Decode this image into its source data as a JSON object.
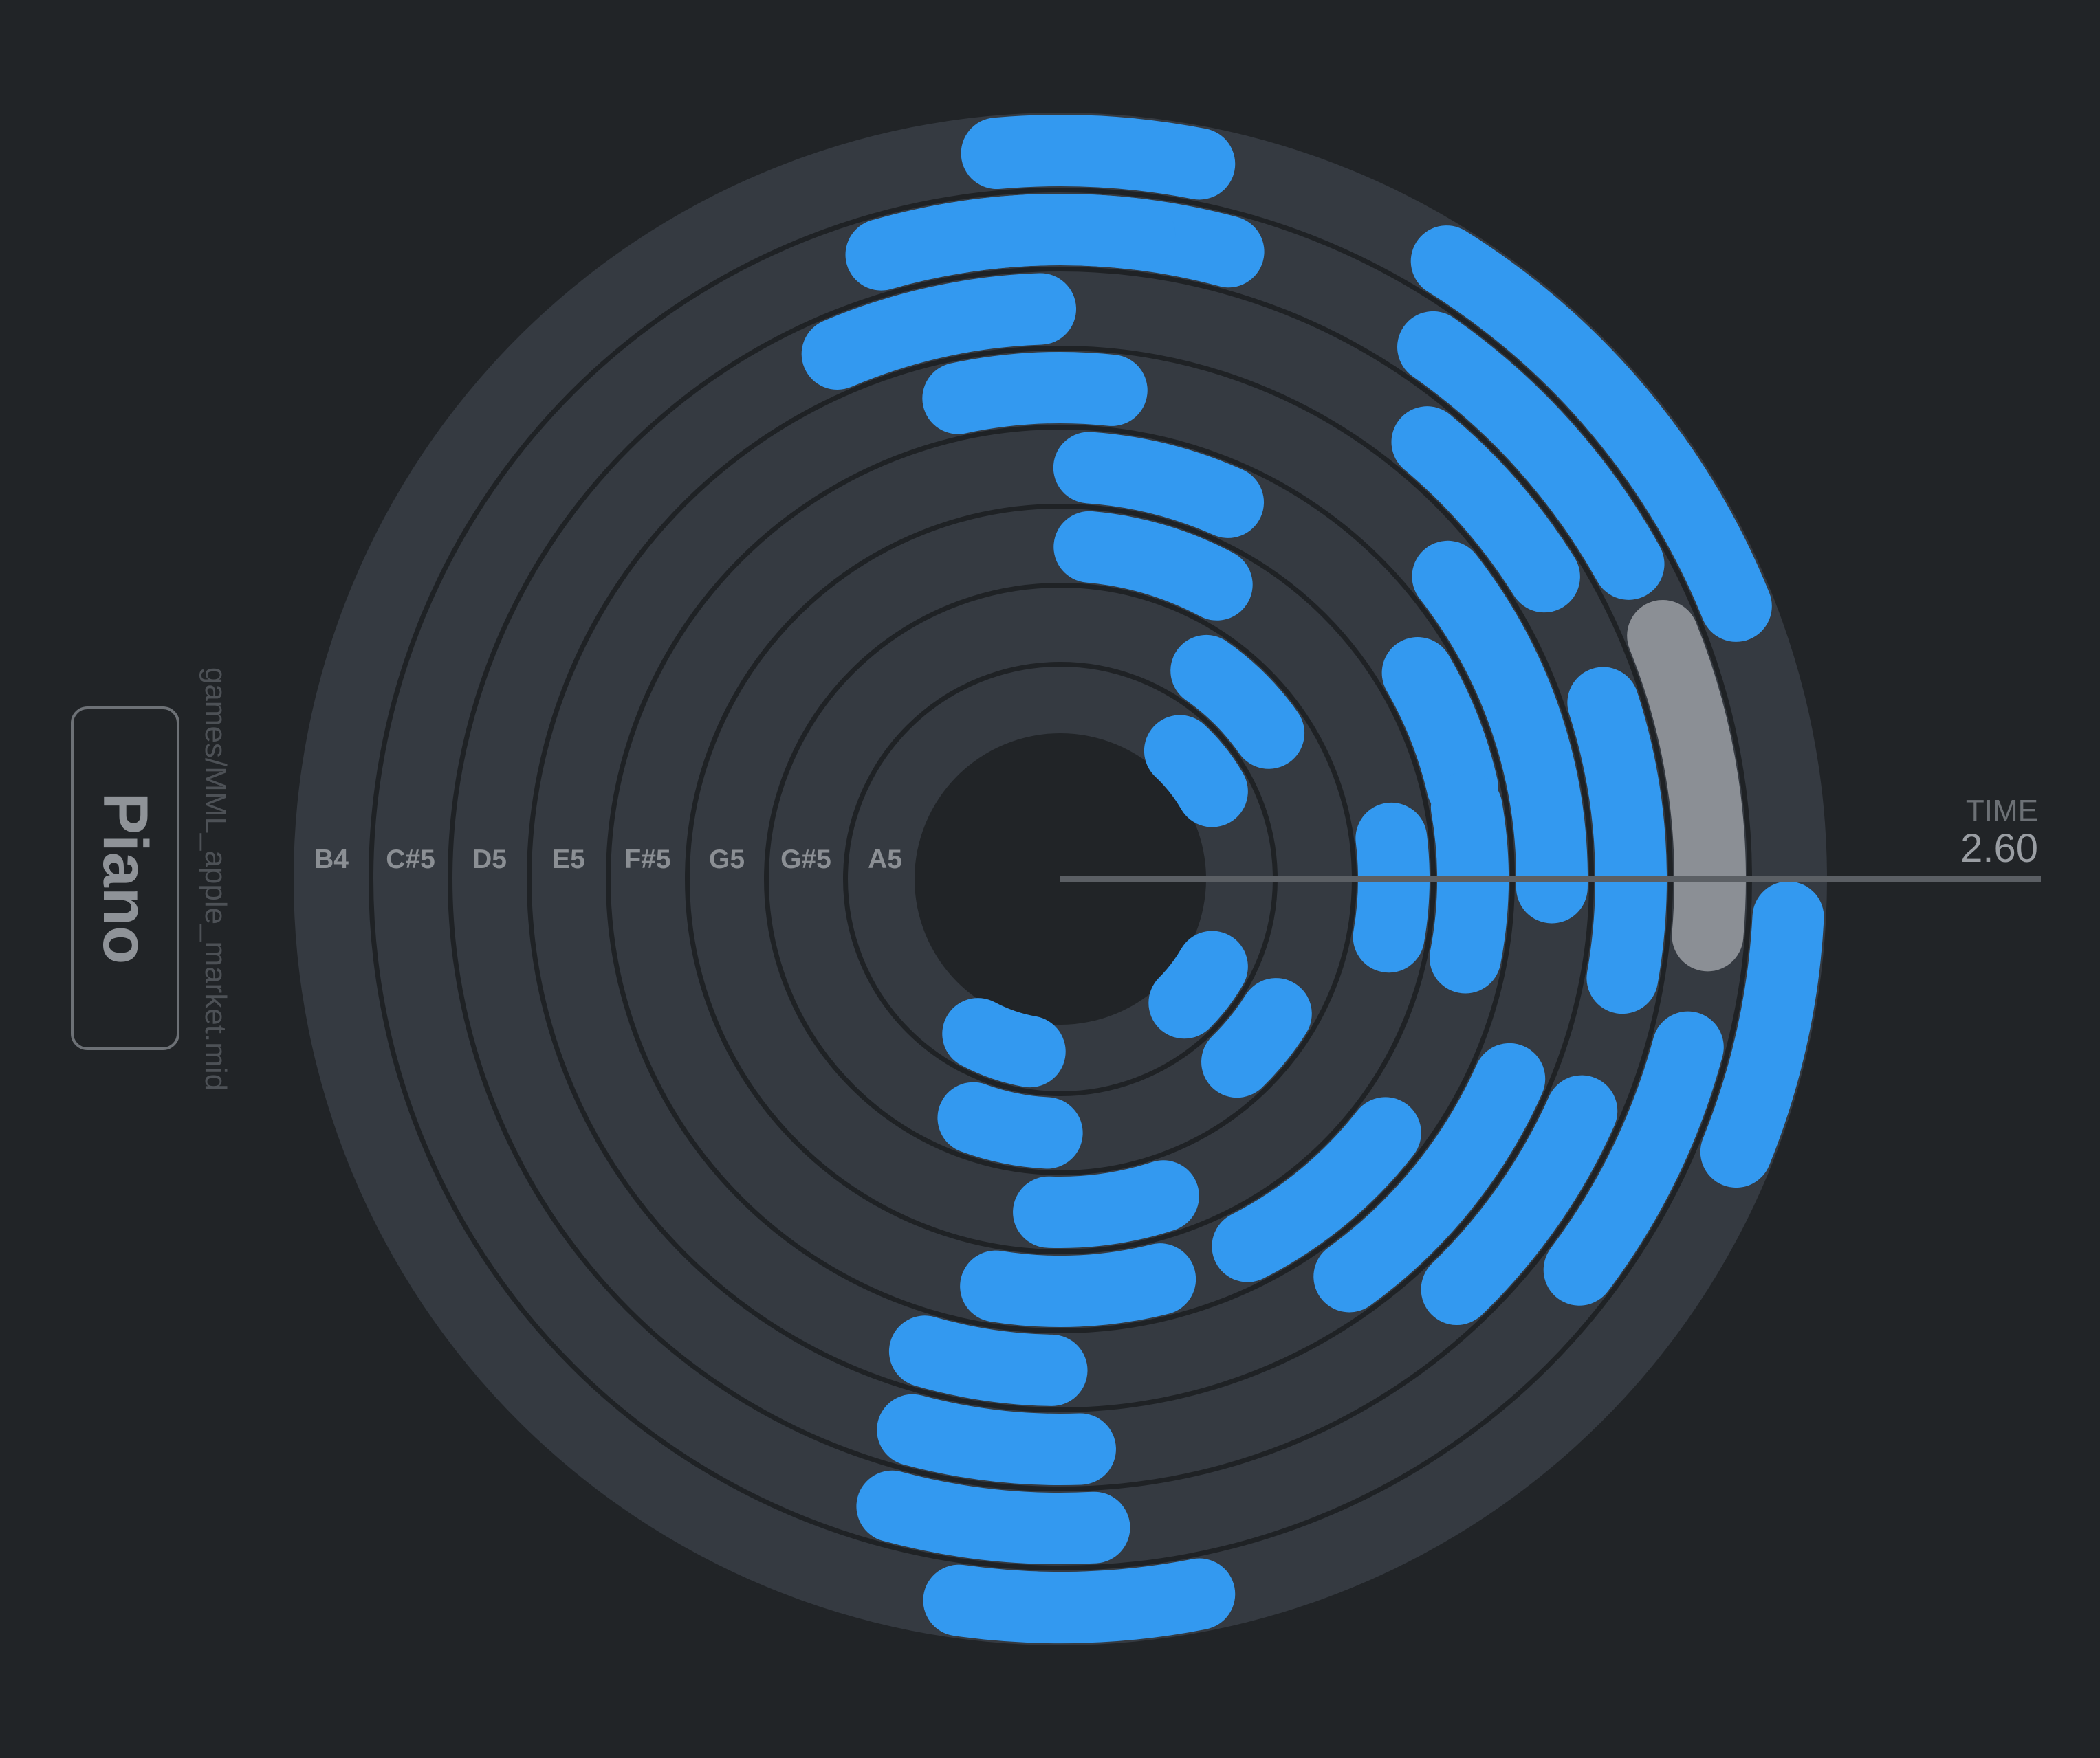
{
  "instrument": {
    "name": "Piano"
  },
  "file": {
    "path": "games/MML_apple_market.mid"
  },
  "time": {
    "label": "TIME",
    "value": "2.60"
  },
  "colors": {
    "background": "#212427",
    "disc": "#353a41",
    "ring_line": "#1f2225",
    "hub": "#212427",
    "note": "#3399f0",
    "active_note": "#8b8f95",
    "playhead": "#5b5f64"
  },
  "pitches": [
    "B4",
    "C#5",
    "D5",
    "E5",
    "F#5",
    "G5",
    "G#5",
    "A5"
  ],
  "notes": [
    {
      "pitch": "B4",
      "start_deg": 265,
      "end_deg": 281
    },
    {
      "pitch": "B4",
      "start_deg": 302,
      "end_deg": 338
    },
    {
      "pitch": "B4",
      "start_deg": 3,
      "end_deg": 22
    },
    {
      "pitch": "B4",
      "start_deg": 79,
      "end_deg": 98
    },
    {
      "pitch": "C#5",
      "start_deg": 259,
      "end_deg": 285
    },
    {
      "pitch": "C#5",
      "start_deg": 305,
      "end_deg": 331
    },
    {
      "pitch": "C#5",
      "start_deg": 338,
      "end_deg": 365,
      "active": true
    },
    {
      "pitch": "C#5",
      "start_deg": 15,
      "end_deg": 37
    },
    {
      "pitch": "C#5",
      "start_deg": 87,
      "end_deg": 105
    },
    {
      "pitch": "C#5",
      "start_deg": 254,
      "end_deg": 277
    },
    {
      "pitch": "D5",
      "start_deg": 247,
      "end_deg": 268
    },
    {
      "pitch": "D5",
      "start_deg": 310,
      "end_deg": 328
    },
    {
      "pitch": "D5",
      "start_deg": 342,
      "end_deg": 370
    },
    {
      "pitch": "D5",
      "start_deg": 24,
      "end_deg": 46
    },
    {
      "pitch": "D5",
      "start_deg": 88,
      "end_deg": 105
    },
    {
      "pitch": "E5",
      "start_deg": 258,
      "end_deg": 276
    },
    {
      "pitch": "E5",
      "start_deg": 322,
      "end_deg": 361
    },
    {
      "pitch": "E5",
      "start_deg": 24,
      "end_deg": 54
    },
    {
      "pitch": "E5",
      "start_deg": 91,
      "end_deg": 106
    },
    {
      "pitch": "F#5",
      "start_deg": 274,
      "end_deg": 294
    },
    {
      "pitch": "F#5",
      "start_deg": 330,
      "end_deg": 347
    },
    {
      "pitch": "F#5",
      "start_deg": 350,
      "end_deg": 371
    },
    {
      "pitch": "F#5",
      "start_deg": 38,
      "end_deg": 63
    },
    {
      "pitch": "F#5",
      "start_deg": 76,
      "end_deg": 99
    },
    {
      "pitch": "G5",
      "start_deg": 275,
      "end_deg": 298
    },
    {
      "pitch": "G5",
      "start_deg": 353,
      "end_deg": 370
    },
    {
      "pitch": "G5",
      "start_deg": 72,
      "end_deg": 92
    },
    {
      "pitch": "G#5",
      "start_deg": 305,
      "end_deg": 325
    },
    {
      "pitch": "G#5",
      "start_deg": 32,
      "end_deg": 46
    },
    {
      "pitch": "G#5",
      "start_deg": 93,
      "end_deg": 110
    },
    {
      "pitch": "A5",
      "start_deg": 313,
      "end_deg": 330
    },
    {
      "pitch": "A5",
      "start_deg": 30,
      "end_deg": 45
    },
    {
      "pitch": "A5",
      "start_deg": 100,
      "end_deg": 118
    }
  ]
}
